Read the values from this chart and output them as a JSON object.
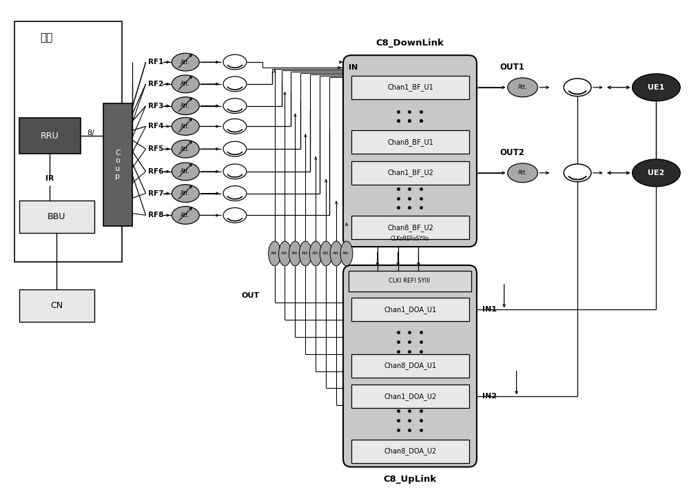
{
  "bg_color": "#ffffff",
  "mid_gray": "#808080",
  "dark_gray": "#505050",
  "coup_gray": "#606060",
  "box_light": "#e8e8e8",
  "box_mid": "#c8c8c8",
  "att_gray": "#a8a8a8",
  "ue_dark": "#2a2a2a",
  "rf_labels": [
    "RF1",
    "RF2",
    "RF3",
    "RF4",
    "RF5",
    "RF6",
    "RF7",
    "RF8"
  ]
}
